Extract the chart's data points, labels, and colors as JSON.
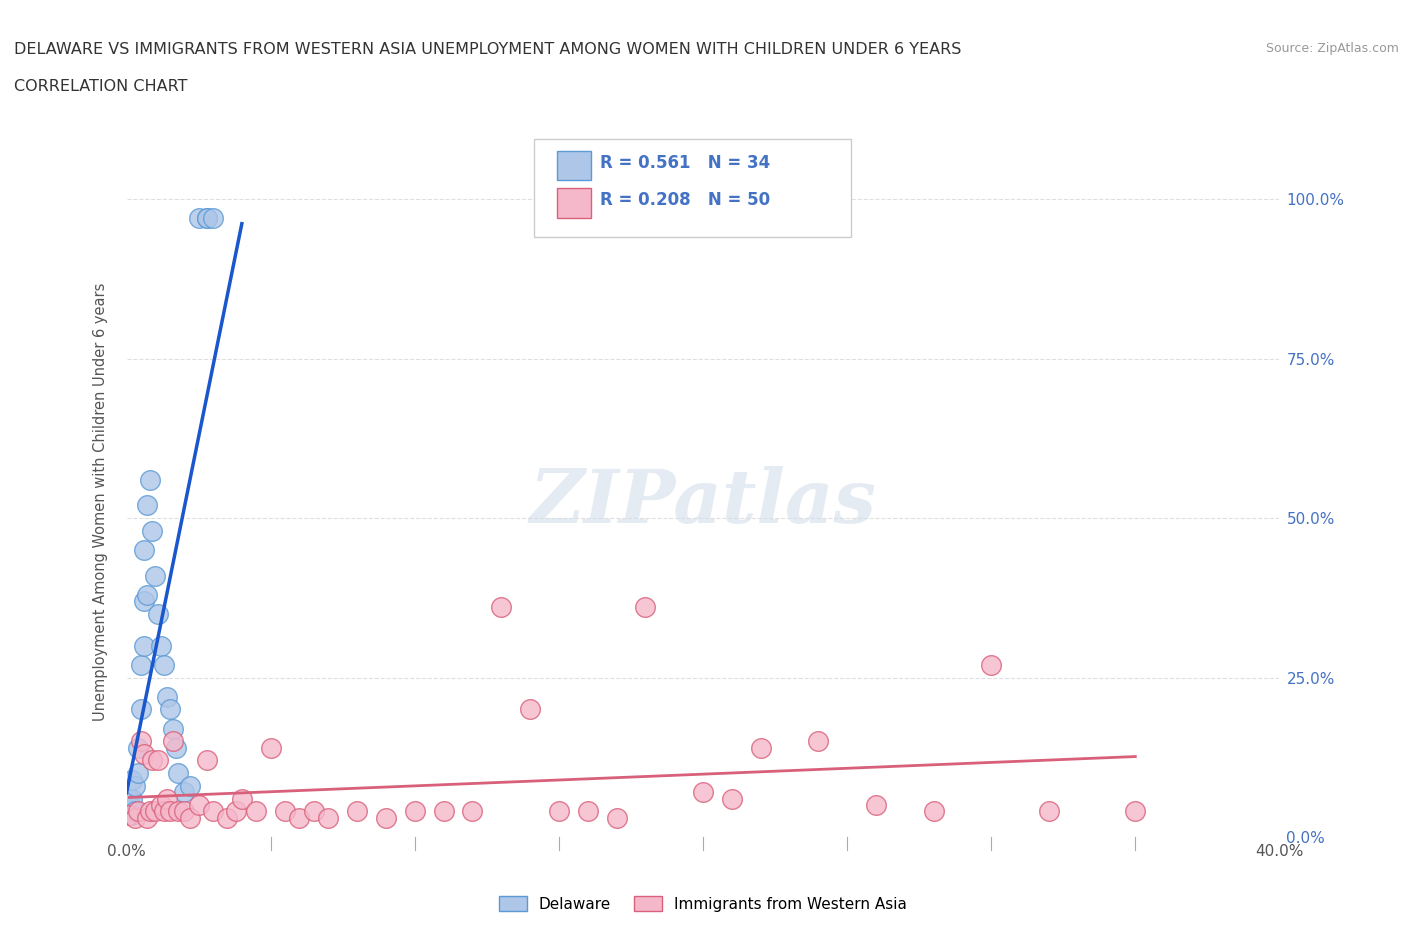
{
  "title_line1": "DELAWARE VS IMMIGRANTS FROM WESTERN ASIA UNEMPLOYMENT AMONG WOMEN WITH CHILDREN UNDER 6 YEARS",
  "title_line2": "CORRELATION CHART",
  "source": "Source: ZipAtlas.com",
  "ylabel": "Unemployment Among Women with Children Under 6 years",
  "xlim": [
    0.0,
    0.4
  ],
  "ylim": [
    0.0,
    1.05
  ],
  "x_ticks": [
    0.0,
    0.05,
    0.1,
    0.15,
    0.2,
    0.25,
    0.3,
    0.35,
    0.4
  ],
  "y_ticks": [
    0.0,
    0.25,
    0.5,
    0.75,
    1.0
  ],
  "y_tick_labels": [
    "0.0%",
    "25.0%",
    "50.0%",
    "75.0%",
    "100.0%"
  ],
  "delaware_R": 0.561,
  "delaware_N": 34,
  "western_asia_R": 0.208,
  "western_asia_N": 50,
  "delaware_color": "#aec6e8",
  "delaware_edge_color": "#5b9bd5",
  "western_asia_color": "#f5b8cb",
  "western_asia_edge_color": "#d9607a",
  "trend_delaware_color": "#1a56cc",
  "trend_western_asia_color": "#d9607a",
  "watermark_color": "#d0dce8",
  "legend_R_color": "#4472c4",
  "legend_N_color": "#4472c4",
  "delaware_x": [
    0.001,
    0.001,
    0.001,
    0.002,
    0.002,
    0.002,
    0.003,
    0.003,
    0.004,
    0.004,
    0.005,
    0.005,
    0.006,
    0.006,
    0.006,
    0.007,
    0.007,
    0.008,
    0.009,
    0.01,
    0.011,
    0.012,
    0.013,
    0.014,
    0.015,
    0.016,
    0.017,
    0.018,
    0.02,
    0.022,
    0.025,
    0.028,
    0.028,
    0.03
  ],
  "delaware_y": [
    0.04,
    0.05,
    0.06,
    0.035,
    0.06,
    0.09,
    0.04,
    0.08,
    0.1,
    0.14,
    0.2,
    0.27,
    0.3,
    0.37,
    0.45,
    0.38,
    0.52,
    0.56,
    0.48,
    0.41,
    0.35,
    0.3,
    0.27,
    0.22,
    0.2,
    0.17,
    0.14,
    0.1,
    0.07,
    0.08,
    0.97,
    0.97,
    0.97,
    0.97
  ],
  "western_asia_x": [
    0.001,
    0.003,
    0.004,
    0.005,
    0.006,
    0.007,
    0.008,
    0.009,
    0.01,
    0.011,
    0.012,
    0.013,
    0.014,
    0.015,
    0.016,
    0.018,
    0.02,
    0.022,
    0.025,
    0.028,
    0.03,
    0.035,
    0.038,
    0.04,
    0.045,
    0.05,
    0.055,
    0.06,
    0.065,
    0.07,
    0.08,
    0.09,
    0.1,
    0.11,
    0.12,
    0.13,
    0.14,
    0.15,
    0.16,
    0.17,
    0.18,
    0.2,
    0.21,
    0.22,
    0.24,
    0.26,
    0.28,
    0.3,
    0.32,
    0.35
  ],
  "western_asia_y": [
    0.035,
    0.03,
    0.04,
    0.15,
    0.13,
    0.03,
    0.04,
    0.12,
    0.04,
    0.12,
    0.05,
    0.04,
    0.06,
    0.04,
    0.15,
    0.04,
    0.04,
    0.03,
    0.05,
    0.12,
    0.04,
    0.03,
    0.04,
    0.06,
    0.04,
    0.14,
    0.04,
    0.03,
    0.04,
    0.03,
    0.04,
    0.03,
    0.04,
    0.04,
    0.04,
    0.36,
    0.2,
    0.04,
    0.04,
    0.03,
    0.36,
    0.07,
    0.06,
    0.14,
    0.15,
    0.05,
    0.04,
    0.27,
    0.04,
    0.04
  ]
}
